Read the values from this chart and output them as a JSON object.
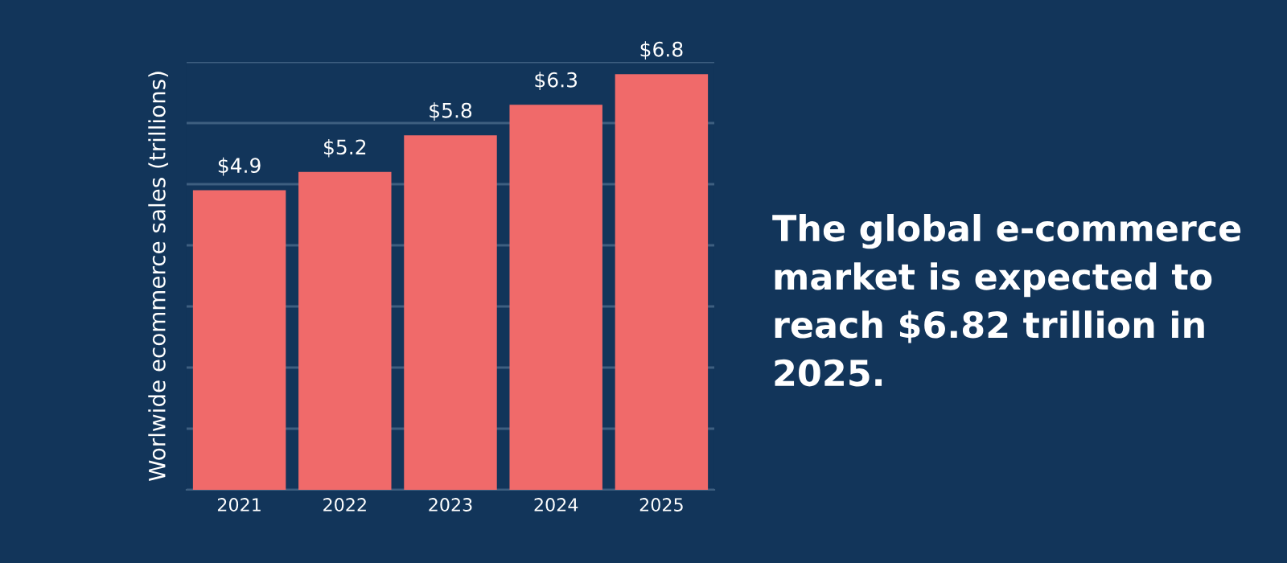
{
  "chart_data": {
    "type": "bar",
    "ylabel": "Worlwide ecommerce sales (trillions)",
    "categories": [
      "2021",
      "2022",
      "2023",
      "2024",
      "2025"
    ],
    "values": [
      4.9,
      5.2,
      5.8,
      6.3,
      6.8
    ],
    "value_labels": [
      "$4.9",
      "$5.2",
      "$5.8",
      "$6.3",
      "$6.8"
    ],
    "color": "#f06a6a",
    "ylim": [
      0,
      7
    ],
    "yticks": [
      {
        "value": 0,
        "label": null
      },
      {
        "value": 1,
        "label": null
      },
      {
        "value": 2,
        "label": null
      },
      {
        "value": 3,
        "label": null
      },
      {
        "value": 4,
        "label": null
      },
      {
        "value": 5,
        "label": null
      },
      {
        "value": 6,
        "label": null
      },
      {
        "value": 7,
        "label": null
      }
    ],
    "grid": "y",
    "annotations": [
      "The global e-commerce market is expected to reach $6.82 trillion in 2025."
    ]
  }
}
